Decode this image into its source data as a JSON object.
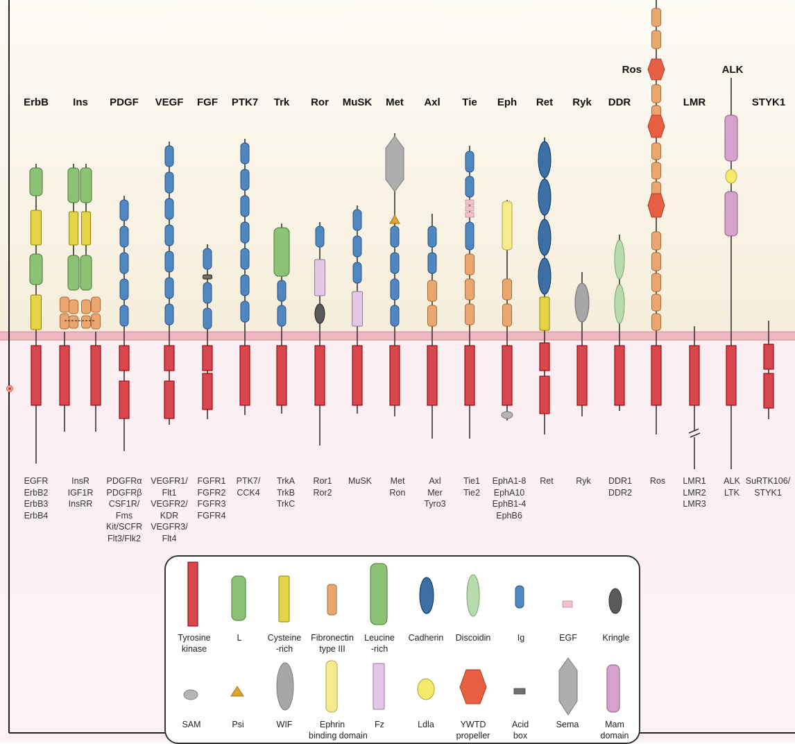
{
  "families": [
    {
      "id": "erbb",
      "name": "ErbB",
      "members": [
        "EGFR",
        "ErbB2",
        "ErbB3",
        "ErbB4"
      ]
    },
    {
      "id": "ins",
      "name": "Ins",
      "members": [
        "InsR",
        "IGF1R",
        "InsRR"
      ]
    },
    {
      "id": "pdgf",
      "name": "PDGF",
      "members": [
        "PDGFRα",
        "PDGFRβ",
        "CSF1R/",
        "Fms",
        "Kit/SCFR",
        "Flt3/Flk2"
      ]
    },
    {
      "id": "vegf",
      "name": "VEGF",
      "members": [
        "VEGFR1/",
        "Flt1",
        "VEGFR2/",
        "KDR",
        "VEGFR3/",
        "Flt4"
      ]
    },
    {
      "id": "fgf",
      "name": "FGF",
      "members": [
        "FGFR1",
        "FGFR2",
        "FGFR3",
        "FGFR4"
      ]
    },
    {
      "id": "ptk7",
      "name": "PTK7",
      "members": [
        "PTK7/",
        "CCK4"
      ]
    },
    {
      "id": "trk",
      "name": "Trk",
      "members": [
        "TrkA",
        "TrkB",
        "TrkC"
      ]
    },
    {
      "id": "ror",
      "name": "Ror",
      "members": [
        "Ror1",
        "Ror2"
      ]
    },
    {
      "id": "musk",
      "name": "MuSK",
      "members": [
        "MuSK"
      ]
    },
    {
      "id": "met",
      "name": "Met",
      "members": [
        "Met",
        "Ron"
      ]
    },
    {
      "id": "axl",
      "name": "Axl",
      "members": [
        "Axl",
        "Mer",
        "Tyro3"
      ]
    },
    {
      "id": "tie",
      "name": "Tie",
      "members": [
        "Tie1",
        "Tie2"
      ]
    },
    {
      "id": "eph",
      "name": "Eph",
      "members": [
        "EphA1-8",
        "EphA10",
        "EphB1-4",
        "EphB6"
      ]
    },
    {
      "id": "ret",
      "name": "Ret",
      "members": [
        "Ret"
      ]
    },
    {
      "id": "ryk",
      "name": "Ryk",
      "members": [
        "Ryk"
      ]
    },
    {
      "id": "ddr",
      "name": "DDR",
      "members": [
        "DDR1",
        "DDR2"
      ]
    },
    {
      "id": "ros",
      "name": "Ros",
      "members": [
        "Ros"
      ]
    },
    {
      "id": "lmr",
      "name": "LMR",
      "members": [
        "LMR1",
        "LMR2",
        "LMR3"
      ]
    },
    {
      "id": "alk",
      "name": "ALK",
      "members": [
        "ALK",
        "LTK"
      ]
    },
    {
      "id": "styk1",
      "name": "STYK1",
      "members": [
        "SuRTK106/",
        "STYK1"
      ]
    }
  ],
  "legend": {
    "row1": [
      {
        "id": "tyrosine-kinase",
        "lines": [
          "Tyrosine",
          "kinase"
        ]
      },
      {
        "id": "l",
        "lines": [
          "L"
        ]
      },
      {
        "id": "cysteine-rich",
        "lines": [
          "Cysteine",
          "-rich"
        ]
      },
      {
        "id": "fibronectin",
        "lines": [
          "Fibronectin",
          "type III"
        ]
      },
      {
        "id": "leucine-rich",
        "lines": [
          "Leucine",
          "-rich"
        ]
      },
      {
        "id": "cadherin",
        "lines": [
          "Cadherin"
        ]
      },
      {
        "id": "discoidin",
        "lines": [
          "Discoidin"
        ]
      },
      {
        "id": "ig",
        "lines": [
          "Ig"
        ]
      },
      {
        "id": "egf",
        "lines": [
          "EGF"
        ]
      },
      {
        "id": "kringle",
        "lines": [
          "Kringle"
        ]
      }
    ],
    "row2": [
      {
        "id": "sam",
        "lines": [
          "SAM"
        ]
      },
      {
        "id": "psi",
        "lines": [
          "Psi"
        ]
      },
      {
        "id": "wif",
        "lines": [
          "WIF"
        ]
      },
      {
        "id": "ephrin-binding",
        "lines": [
          "Ephrin",
          "binding domain"
        ]
      },
      {
        "id": "fz",
        "lines": [
          "Fz"
        ]
      },
      {
        "id": "ldla",
        "lines": [
          "Ldla"
        ]
      },
      {
        "id": "ywtd",
        "lines": [
          "YWTD",
          "propeller"
        ]
      },
      {
        "id": "acid-box",
        "lines": [
          "Acid",
          "box"
        ]
      },
      {
        "id": "sema",
        "lines": [
          "Sema"
        ]
      },
      {
        "id": "mam",
        "lines": [
          "Mam",
          "domain"
        ]
      }
    ]
  },
  "colors": {
    "extracellular": "#f6eedb",
    "intracellular": "#fbeef2",
    "membrane": "#ecb7c1",
    "kinase": "#d9474e",
    "l": "#8cc276",
    "cysteine": "#e3d346",
    "fibronectin": "#eba56f",
    "leucine": "#8cc276",
    "cadherin": "#3e6fa4",
    "discoidin": "#b6dcae",
    "ig": "#4f87c1",
    "egf": "#f2c0c8",
    "kringle": "#5a5a5a",
    "sam": "#b5b5b5",
    "psi": "#dea52e",
    "wif": "#a6a6a6",
    "ephrin": "#f4eb8c",
    "fz": "#e2c8e6",
    "ldla": "#f4ea6b",
    "ywtd": "#e75f42",
    "acidbox": "#707070",
    "sema": "#aeaeae",
    "mam": "#d6a1cd"
  }
}
